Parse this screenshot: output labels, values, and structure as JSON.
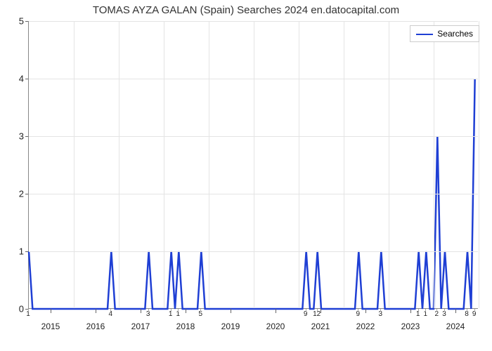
{
  "chart": {
    "type": "line",
    "title": "TOMAS AYZA GALAN (Spain) Searches 2024 en.datocapital.com",
    "title_fontsize": 15,
    "title_color": "#333333",
    "background_color": "#ffffff",
    "grid_color": "#e4e4e4",
    "axis_color": "#888888",
    "label_fontsize": 13,
    "minor_label_fontsize": 10,
    "ylim": [
      0,
      5
    ],
    "yticks": [
      0,
      1,
      2,
      3,
      4,
      5
    ],
    "x_range_points": 120,
    "x_major_ticks": [
      {
        "pos": 6,
        "label": "2015"
      },
      {
        "pos": 18,
        "label": "2016"
      },
      {
        "pos": 30,
        "label": "2017"
      },
      {
        "pos": 42,
        "label": "2018"
      },
      {
        "pos": 54,
        "label": "2019"
      },
      {
        "pos": 66,
        "label": "2020"
      },
      {
        "pos": 78,
        "label": "2021"
      },
      {
        "pos": 90,
        "label": "2022"
      },
      {
        "pos": 102,
        "label": "2023"
      },
      {
        "pos": 114,
        "label": "2024"
      }
    ],
    "vgrid_positions": [
      12,
      24,
      36,
      48,
      60,
      72,
      84,
      96,
      108,
      120
    ],
    "x_minor_ticks": [
      {
        "pos": 0,
        "label": "1"
      },
      {
        "pos": 22,
        "label": "4"
      },
      {
        "pos": 32,
        "label": "3"
      },
      {
        "pos": 38,
        "label": "1"
      },
      {
        "pos": 40,
        "label": "1"
      },
      {
        "pos": 46,
        "label": "5"
      },
      {
        "pos": 74,
        "label": "9"
      },
      {
        "pos": 77,
        "label": "12"
      },
      {
        "pos": 88,
        "label": "9"
      },
      {
        "pos": 94,
        "label": "3"
      },
      {
        "pos": 104,
        "label": "1"
      },
      {
        "pos": 106,
        "label": "1"
      },
      {
        "pos": 109,
        "label": "2"
      },
      {
        "pos": 111,
        "label": "3"
      },
      {
        "pos": 117,
        "label": "8"
      },
      {
        "pos": 119,
        "label": "9"
      }
    ],
    "series": {
      "name": "Searches",
      "color": "#1f3fd4",
      "line_width": 2.5,
      "points": [
        [
          0,
          1
        ],
        [
          1,
          0
        ],
        [
          2,
          0
        ],
        [
          3,
          0
        ],
        [
          4,
          0
        ],
        [
          5,
          0
        ],
        [
          6,
          0
        ],
        [
          7,
          0
        ],
        [
          8,
          0
        ],
        [
          9,
          0
        ],
        [
          10,
          0
        ],
        [
          11,
          0
        ],
        [
          12,
          0
        ],
        [
          13,
          0
        ],
        [
          14,
          0
        ],
        [
          15,
          0
        ],
        [
          16,
          0
        ],
        [
          17,
          0
        ],
        [
          18,
          0
        ],
        [
          19,
          0
        ],
        [
          20,
          0
        ],
        [
          21,
          0
        ],
        [
          22,
          1
        ],
        [
          23,
          0
        ],
        [
          24,
          0
        ],
        [
          25,
          0
        ],
        [
          26,
          0
        ],
        [
          27,
          0
        ],
        [
          28,
          0
        ],
        [
          29,
          0
        ],
        [
          30,
          0
        ],
        [
          31,
          0
        ],
        [
          32,
          1
        ],
        [
          33,
          0
        ],
        [
          34,
          0
        ],
        [
          35,
          0
        ],
        [
          36,
          0
        ],
        [
          37,
          0
        ],
        [
          38,
          1
        ],
        [
          39,
          0
        ],
        [
          40,
          1
        ],
        [
          41,
          0
        ],
        [
          42,
          0
        ],
        [
          43,
          0
        ],
        [
          44,
          0
        ],
        [
          45,
          0
        ],
        [
          46,
          1
        ],
        [
          47,
          0
        ],
        [
          48,
          0
        ],
        [
          49,
          0
        ],
        [
          50,
          0
        ],
        [
          51,
          0
        ],
        [
          52,
          0
        ],
        [
          53,
          0
        ],
        [
          54,
          0
        ],
        [
          55,
          0
        ],
        [
          56,
          0
        ],
        [
          57,
          0
        ],
        [
          58,
          0
        ],
        [
          59,
          0
        ],
        [
          60,
          0
        ],
        [
          61,
          0
        ],
        [
          62,
          0
        ],
        [
          63,
          0
        ],
        [
          64,
          0
        ],
        [
          65,
          0
        ],
        [
          66,
          0
        ],
        [
          67,
          0
        ],
        [
          68,
          0
        ],
        [
          69,
          0
        ],
        [
          70,
          0
        ],
        [
          71,
          0
        ],
        [
          72,
          0
        ],
        [
          73,
          0
        ],
        [
          74,
          1
        ],
        [
          75,
          0
        ],
        [
          76,
          0
        ],
        [
          77,
          1
        ],
        [
          78,
          0
        ],
        [
          79,
          0
        ],
        [
          80,
          0
        ],
        [
          81,
          0
        ],
        [
          82,
          0
        ],
        [
          83,
          0
        ],
        [
          84,
          0
        ],
        [
          85,
          0
        ],
        [
          86,
          0
        ],
        [
          87,
          0
        ],
        [
          88,
          1
        ],
        [
          89,
          0
        ],
        [
          90,
          0
        ],
        [
          91,
          0
        ],
        [
          92,
          0
        ],
        [
          93,
          0
        ],
        [
          94,
          1
        ],
        [
          95,
          0
        ],
        [
          96,
          0
        ],
        [
          97,
          0
        ],
        [
          98,
          0
        ],
        [
          99,
          0
        ],
        [
          100,
          0
        ],
        [
          101,
          0
        ],
        [
          102,
          0
        ],
        [
          103,
          0
        ],
        [
          104,
          1
        ],
        [
          105,
          0
        ],
        [
          106,
          1
        ],
        [
          107,
          0
        ],
        [
          108,
          0
        ],
        [
          109,
          3
        ],
        [
          110,
          0
        ],
        [
          111,
          1
        ],
        [
          112,
          0
        ],
        [
          113,
          0
        ],
        [
          114,
          0
        ],
        [
          115,
          0
        ],
        [
          116,
          0
        ],
        [
          117,
          1
        ],
        [
          118,
          0
        ],
        [
          119,
          4
        ]
      ]
    },
    "legend": {
      "position": "top-right",
      "label": "Searches",
      "border_color": "#cccccc"
    }
  }
}
